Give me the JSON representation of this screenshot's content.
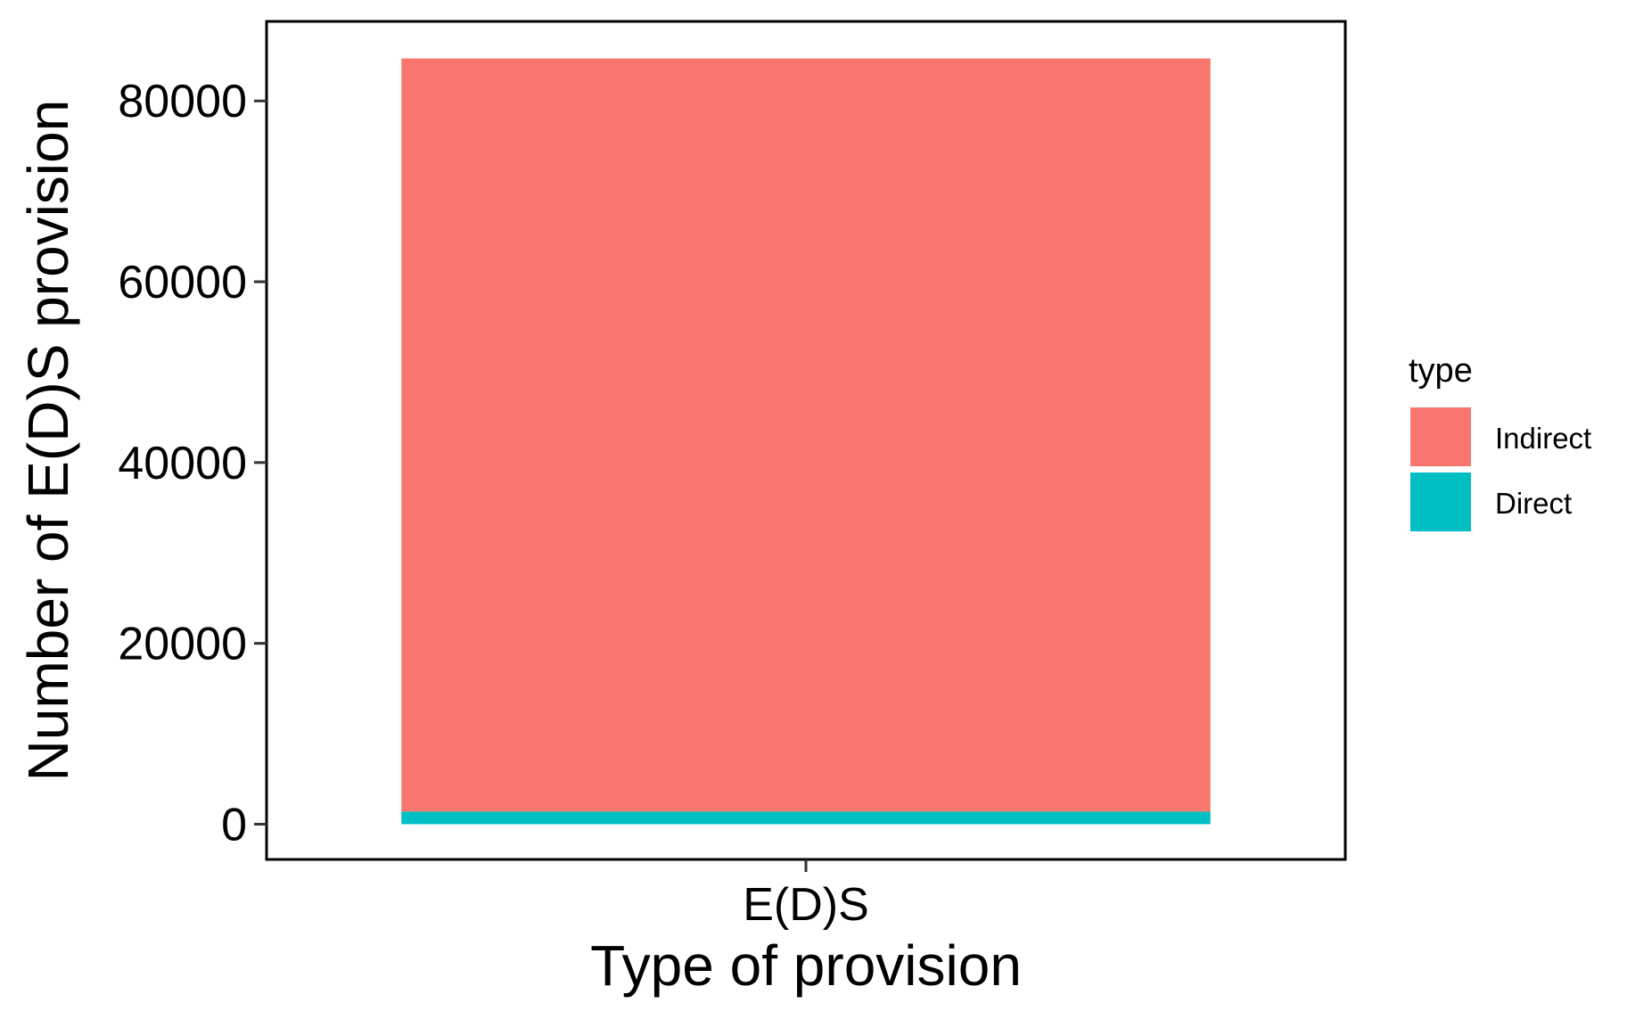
{
  "chart_data": {
    "type": "bar",
    "stacked": true,
    "categories": [
      "E(D)S"
    ],
    "series": [
      {
        "name": "Direct",
        "values": [
          1400
        ],
        "color": "#00BFC4"
      },
      {
        "name": "Indirect",
        "values": [
          83300
        ],
        "color": "#F8766D"
      }
    ],
    "xlabel": "Type of provision",
    "ylabel": "Number of E(D)S provision",
    "yticks": [
      0,
      20000,
      40000,
      60000,
      80000
    ],
    "ylim": [
      -3900,
      88800
    ],
    "grid": false,
    "legend": {
      "title": "type",
      "position": "right",
      "entries": [
        {
          "label": "Indirect",
          "color": "#F8766D"
        },
        {
          "label": "Direct",
          "color": "#00BFC4"
        }
      ]
    }
  }
}
